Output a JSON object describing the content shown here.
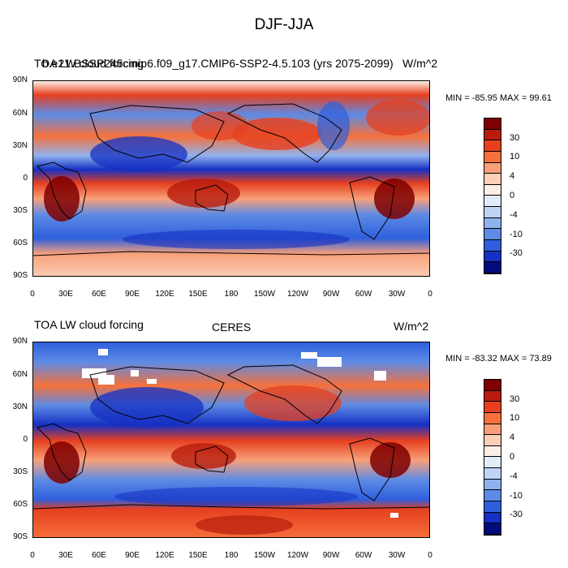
{
  "main_title": "DJF-JJA",
  "panels": [
    {
      "left_title": "TOA LW cloud forcing",
      "center_title": "b.e21.BSSP245cmip6.f09_g17.CMIP6-SSP2-4.5.103 (yrs 2075-2099)",
      "right_title": "W/m^2",
      "minmax": "MIN = -85.95 MAX =  99.61"
    },
    {
      "left_title": "TOA LW cloud forcing",
      "center_title": "CERES",
      "right_title": "W/m^2",
      "minmax": "MIN = -83.32 MAX =  73.89"
    }
  ],
  "lat_ticks": [
    "90N",
    "60N",
    "30N",
    "0",
    "30S",
    "60S",
    "90S"
  ],
  "lon_ticks": [
    "0",
    "30E",
    "60E",
    "90E",
    "120E",
    "150E",
    "180",
    "150W",
    "120W",
    "90W",
    "60W",
    "30W",
    "0"
  ],
  "colorbar": {
    "labels": [
      "30",
      "10",
      "4",
      "0",
      "-4",
      "-10",
      "-30"
    ],
    "colors": [
      "#7f0000",
      "#b81c0c",
      "#e6401f",
      "#f5713c",
      "#f8a07a",
      "#fbcfb8",
      "#fdeee4",
      "#e2ecfa",
      "#bfd3f5",
      "#8fb2ee",
      "#5d8be5",
      "#2f5fdc",
      "#1530c2",
      "#000c7a"
    ]
  }
}
